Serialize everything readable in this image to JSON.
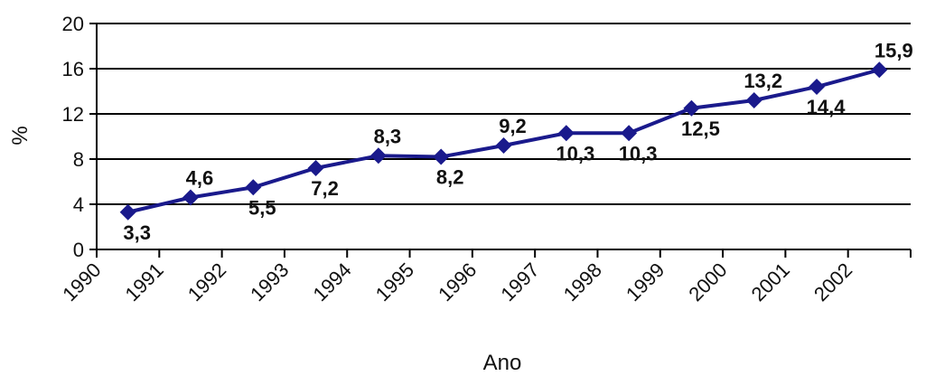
{
  "chart_data": {
    "type": "line",
    "title": "",
    "xlabel": "Ano",
    "ylabel": "%",
    "categories": [
      "1990",
      "1991",
      "1992",
      "1993",
      "1994",
      "1995",
      "1996",
      "1997",
      "1998",
      "1999",
      "2000",
      "2001",
      "2002"
    ],
    "series": [
      {
        "values": [
          3.3,
          4.6,
          5.5,
          7.2,
          8.3,
          8.2,
          9.2,
          10.3,
          10.3,
          12.5,
          13.2,
          14.4,
          15.9
        ],
        "labels": [
          "3,3",
          "4,6",
          "5,5",
          "7,2",
          "8,3",
          "8,2",
          "9,2",
          "10,3",
          "10,3",
          "12,5",
          "13,2",
          "14,4",
          "15,9"
        ]
      }
    ],
    "ylim": [
      0,
      20
    ],
    "yticks": [
      0,
      4,
      8,
      12,
      16,
      20
    ],
    "grid": true,
    "legend": "none",
    "colors": {
      "series": "#1a1a8c",
      "grid": "#000000"
    }
  }
}
